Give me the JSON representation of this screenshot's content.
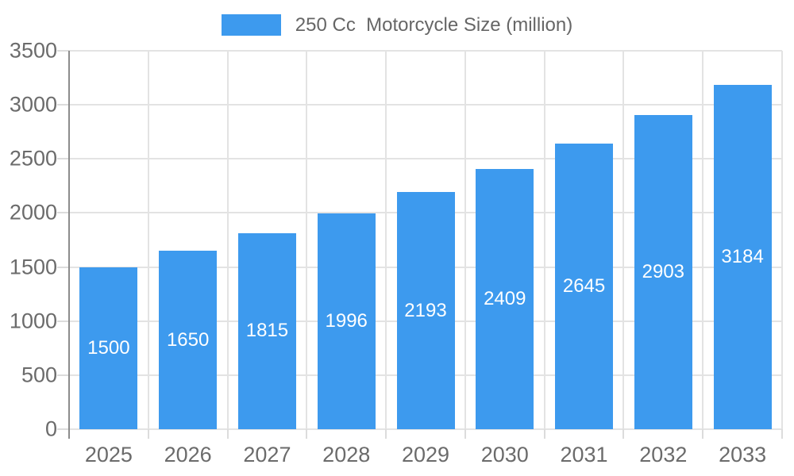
{
  "legend": {
    "label": "250 Cc  Motorcycle Size (million)"
  },
  "chart_data": {
    "type": "bar",
    "title": "",
    "series_name": "250 Cc  Motorcycle Size (million)",
    "categories": [
      "2025",
      "2026",
      "2027",
      "2028",
      "2029",
      "2030",
      "2031",
      "2032",
      "2033"
    ],
    "values": [
      1500,
      1650,
      1815,
      1996,
      2193,
      2409,
      2645,
      2903,
      3184
    ],
    "value_labels_shown": true,
    "xlabel": "",
    "ylabel": "",
    "ylim": [
      0,
      3500
    ],
    "yticks": [
      0,
      500,
      1000,
      1500,
      2000,
      2500,
      3000,
      3500
    ],
    "grid": true,
    "legend_position": "top",
    "colors": {
      "bar": "#3D9AEE",
      "bar_value_text": "#FFFFFF",
      "axis_text": "#6B6B6B",
      "legend_text": "#666666",
      "gridline": "#E3E3E3",
      "tick": "#DCDCDC",
      "axis_line": "#8C8C8C",
      "background": "#FFFFFF"
    }
  }
}
